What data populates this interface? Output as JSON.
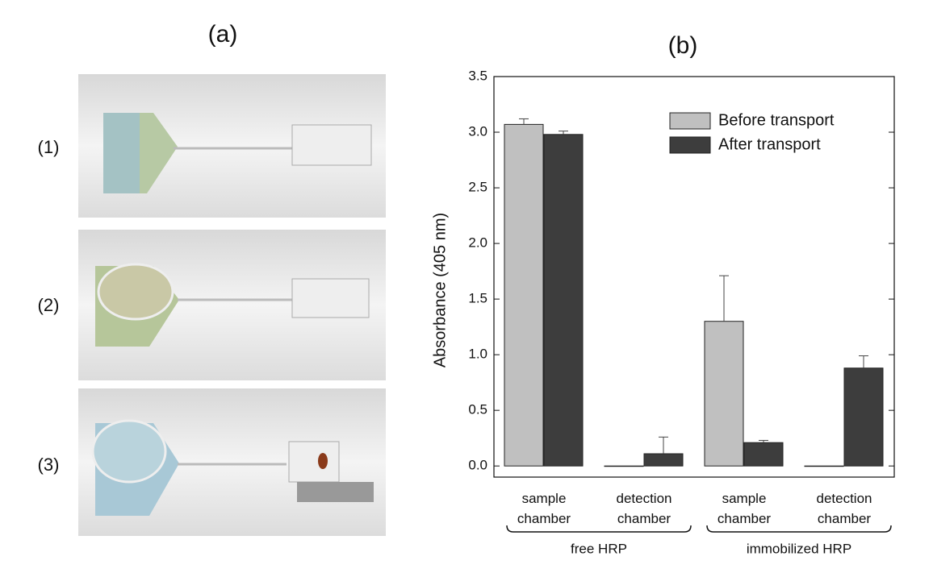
{
  "figure": {
    "panel_a_label": "(a)",
    "row_labels": [
      "(1)",
      "(2)",
      "(3)"
    ],
    "panel_b_label": "(b)"
  },
  "chart_data": {
    "type": "bar",
    "y_label": "Absorbance (405 nm)",
    "categories": [
      "sample chamber",
      "detection chamber",
      "sample chamber",
      "detection chamber"
    ],
    "group_labels": [
      "free HRP",
      "immobilized HRP"
    ],
    "series": [
      {
        "name": "Before transport",
        "color": "#c0c0c0",
        "values": [
          3.07,
          0.0,
          1.3,
          0.0
        ],
        "errors": [
          0.05,
          0.0,
          0.41,
          0.0
        ]
      },
      {
        "name": "After transport",
        "color": "#3d3d3d",
        "values": [
          2.98,
          0.11,
          0.21,
          0.88
        ],
        "errors": [
          0.03,
          0.15,
          0.02,
          0.11
        ]
      }
    ],
    "ylim": [
      -0.1,
      3.5
    ],
    "yticks": [
      {
        "value": 0,
        "label": "0.0"
      },
      0.5,
      {
        "value": 1,
        "label": "1.0"
      },
      1.5,
      {
        "value": 2,
        "label": "2.0"
      },
      2.5,
      {
        "value": 3,
        "label": "3.0"
      },
      3.5
    ],
    "legend": "upper right"
  }
}
